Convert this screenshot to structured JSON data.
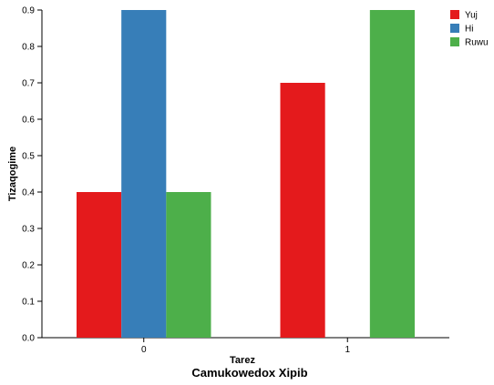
{
  "chart_data": {
    "type": "bar",
    "title": "Camukowedox Xipib",
    "xlabel": "Tarez",
    "ylabel": "Tizaqogime",
    "categories": [
      "0",
      "1"
    ],
    "series": [
      {
        "name": "Yuj",
        "color": "#e41a1c",
        "values": [
          0.4,
          0.7
        ]
      },
      {
        "name": "Hi",
        "color": "#377eb8",
        "values": [
          0.9,
          0
        ]
      },
      {
        "name": "Ruwu",
        "color": "#4daf4a",
        "values": [
          0.4,
          0.9
        ]
      }
    ],
    "ylim": [
      0,
      0.9
    ],
    "yticks": [
      "0.0",
      "0.1",
      "0.2",
      "0.3",
      "0.4",
      "0.5",
      "0.6",
      "0.7",
      "0.8",
      "0.9"
    ],
    "grid": false,
    "legend_position": "top-right"
  }
}
